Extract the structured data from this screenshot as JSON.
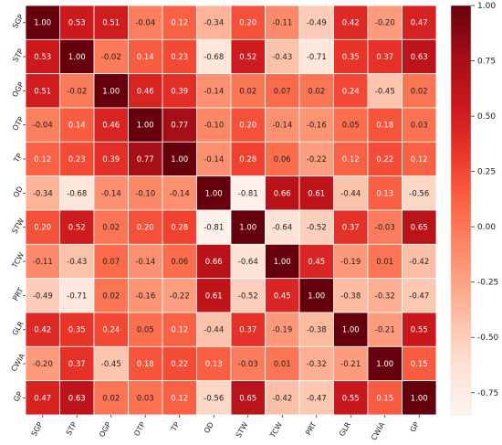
{
  "chart_data": {
    "type": "heatmap",
    "title": "",
    "xlabel": "",
    "ylabel": "",
    "labels": [
      "SGP",
      "STP",
      "OGP",
      "OTP",
      "TP",
      "OD",
      "STW",
      "TCW",
      "PRT",
      "GLR",
      "CWIA",
      "GP"
    ],
    "values": [
      [
        1.0,
        0.53,
        0.51,
        -0.04,
        0.12,
        -0.34,
        0.2,
        -0.11,
        -0.49,
        0.42,
        -0.2,
        0.47
      ],
      [
        0.53,
        1.0,
        -0.02,
        0.14,
        0.23,
        -0.68,
        0.52,
        -0.43,
        -0.71,
        0.35,
        0.37,
        0.63
      ],
      [
        0.51,
        -0.02,
        1.0,
        0.46,
        0.39,
        -0.14,
        0.02,
        0.07,
        0.02,
        0.24,
        -0.45,
        0.02
      ],
      [
        -0.04,
        0.14,
        0.46,
        1.0,
        0.77,
        -0.1,
        0.2,
        -0.14,
        -0.16,
        0.05,
        0.18,
        0.03
      ],
      [
        0.12,
        0.23,
        0.39,
        0.77,
        1.0,
        -0.14,
        0.28,
        0.06,
        -0.22,
        0.12,
        0.22,
        0.12
      ],
      [
        -0.34,
        -0.68,
        -0.14,
        -0.1,
        -0.14,
        1.0,
        -0.81,
        0.66,
        0.61,
        -0.44,
        0.13,
        -0.56
      ],
      [
        0.2,
        0.52,
        0.02,
        0.2,
        0.28,
        -0.81,
        1.0,
        -0.64,
        -0.52,
        0.37,
        -0.03,
        0.65
      ],
      [
        -0.11,
        -0.43,
        0.07,
        -0.14,
        0.06,
        0.66,
        -0.64,
        1.0,
        0.45,
        -0.19,
        0.01,
        -0.42
      ],
      [
        -0.49,
        -0.71,
        0.02,
        -0.16,
        -0.22,
        0.61,
        -0.52,
        0.45,
        1.0,
        -0.38,
        -0.32,
        -0.47
      ],
      [
        0.42,
        0.35,
        0.24,
        0.05,
        0.12,
        -0.44,
        0.37,
        -0.19,
        -0.38,
        1.0,
        -0.21,
        0.55
      ],
      [
        -0.2,
        0.37,
        -0.45,
        0.18,
        0.22,
        0.13,
        -0.03,
        0.01,
        -0.32,
        -0.21,
        1.0,
        0.15
      ],
      [
        0.47,
        0.63,
        0.02,
        0.03,
        0.12,
        -0.56,
        0.65,
        -0.42,
        -0.47,
        0.55,
        0.15,
        1.0
      ]
    ],
    "value_format": "0.00",
    "colormap": "Reds",
    "vmin": -0.85,
    "vmax": 1.0,
    "colorbar_ticks": [
      "1.00",
      "0.75",
      "0.50",
      "0.25",
      "0.00",
      "-0.25",
      "-0.50",
      "-0.75"
    ],
    "colorbar_tick_values": [
      1.0,
      0.75,
      0.5,
      0.25,
      0.0,
      -0.25,
      -0.5,
      -0.75
    ],
    "colormap_stops": [
      "#fff5f0",
      "#fee0d2",
      "#fcbba1",
      "#fc9272",
      "#fb6a4a",
      "#ef3b2c",
      "#cb181d",
      "#a50f15",
      "#67000d"
    ],
    "grid_line_color": "#ffffff",
    "legend": "colorbar-right"
  }
}
